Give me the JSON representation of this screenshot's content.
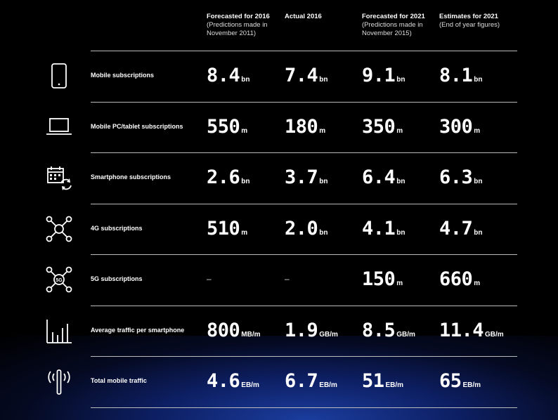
{
  "chart_data": {
    "type": "table",
    "columns": [
      {
        "title": "Forecasted for 2016",
        "sub": "(Predictions made in November 2011)"
      },
      {
        "title": "Actual 2016",
        "sub": ""
      },
      {
        "title": "Forecasted for 2021",
        "sub": "(Predictions made in November 2015)"
      },
      {
        "title": "Estimates for 2021",
        "sub": "(End of year figures)"
      }
    ],
    "rows": [
      {
        "label": "Mobile subscriptions",
        "icon": "phone-icon",
        "cells": [
          {
            "v": "8.4",
            "u": "bn"
          },
          {
            "v": "7.4",
            "u": "bn"
          },
          {
            "v": "9.1",
            "u": "bn"
          },
          {
            "v": "8.1",
            "u": "bn"
          }
        ]
      },
      {
        "label": "Mobile PC/tablet subscriptions",
        "icon": "laptop-icon",
        "cells": [
          {
            "v": "550",
            "u": "m"
          },
          {
            "v": "180",
            "u": "m"
          },
          {
            "v": "350",
            "u": "m"
          },
          {
            "v": "300",
            "u": "m"
          }
        ]
      },
      {
        "label": "Smartphone subscriptions",
        "icon": "calendar-sync-icon",
        "cells": [
          {
            "v": "2.6",
            "u": "bn"
          },
          {
            "v": "3.7",
            "u": "bn"
          },
          {
            "v": "6.4",
            "u": "bn"
          },
          {
            "v": "6.3",
            "u": "bn"
          }
        ]
      },
      {
        "label": "4G subscriptions",
        "icon": "network-hub-icon",
        "cells": [
          {
            "v": "510",
            "u": "m"
          },
          {
            "v": "2.0",
            "u": "bn"
          },
          {
            "v": "4.1",
            "u": "bn"
          },
          {
            "v": "4.7",
            "u": "bn"
          }
        ]
      },
      {
        "label": "5G subscriptions",
        "icon": "network-5g-icon",
        "cells": [
          {
            "v": "–",
            "u": ""
          },
          {
            "v": "–",
            "u": ""
          },
          {
            "v": "150",
            "u": "m"
          },
          {
            "v": "660",
            "u": "m"
          }
        ]
      },
      {
        "label": "Average traffic per smartphone",
        "icon": "bar-chart-icon",
        "cells": [
          {
            "v": "800",
            "u": "MB/m"
          },
          {
            "v": "1.9",
            "u": "GB/m"
          },
          {
            "v": "8.5",
            "u": "GB/m"
          },
          {
            "v": "11.4",
            "u": "GB/m"
          }
        ]
      },
      {
        "label": "Total mobile traffic",
        "icon": "antenna-icon",
        "cells": [
          {
            "v": "4.6",
            "u": "EB/m"
          },
          {
            "v": "6.7",
            "u": "EB/m"
          },
          {
            "v": "51",
            "u": "EB/m"
          },
          {
            "v": "65",
            "u": "EB/m"
          }
        ]
      }
    ]
  },
  "icon_5g_text": "5G",
  "colors": {
    "background": "#000000",
    "text": "#ffffff",
    "divider": "#bbbbbb",
    "glow": "#1b3d9e"
  }
}
